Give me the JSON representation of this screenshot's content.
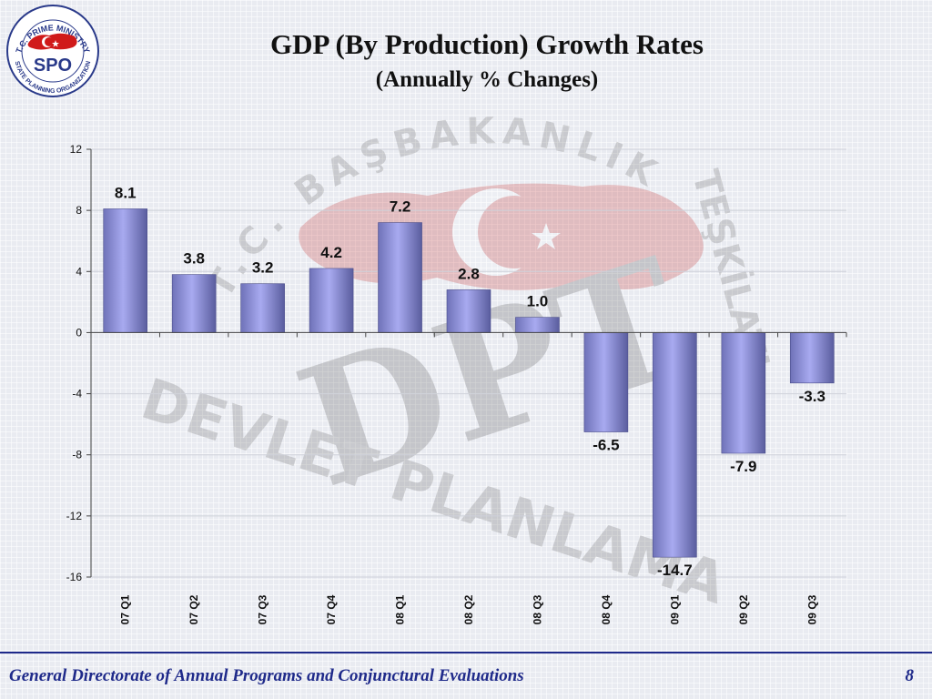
{
  "logo": {
    "top_text": "T.C. PRIME MINISTRY",
    "bottom_text": "STATE PLANNING ORGANIZATION",
    "center_text": "SPO"
  },
  "watermark": {
    "arc_text": "T.C. BAŞBAKANLIK",
    "right_text": "TEŞKİLATI",
    "bottom_text": "DEVLET PLANLAMA",
    "center_text": "DPT"
  },
  "title": "GDP (By Production) Growth Rates",
  "subtitle": "(Annually % Changes)",
  "chart_data": {
    "type": "bar",
    "categories": [
      "07 Q1",
      "07 Q2",
      "07 Q3",
      "07 Q4",
      "08 Q1",
      "08 Q2",
      "08 Q3",
      "08 Q4",
      "09 Q1",
      "09 Q2",
      "09 Q3"
    ],
    "values": [
      8.1,
      3.8,
      3.2,
      4.2,
      7.2,
      2.8,
      1.0,
      -6.5,
      -14.7,
      -7.9,
      -3.3
    ],
    "value_labels": [
      "8.1",
      "3.8",
      "3.2",
      "4.2",
      "7.2",
      "2.8",
      "1.0",
      "-6.5",
      "-14.7",
      "-7.9",
      "-3.3"
    ],
    "yticks": [
      "12",
      "8",
      "4",
      "0",
      "-4",
      "-8",
      "-12",
      "-16"
    ],
    "ylim": [
      -16,
      12
    ],
    "grid": true,
    "bar_color": "#a8aaf0",
    "legend": "none"
  },
  "footer": {
    "text": "General Directorate of Annual Programs and Conjunctural Evaluations",
    "page": "8"
  }
}
